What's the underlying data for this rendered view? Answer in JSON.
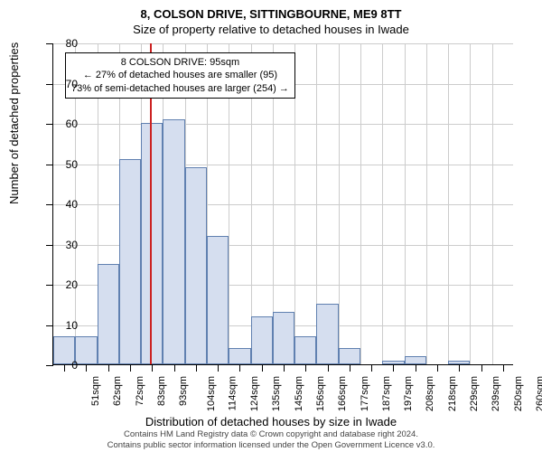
{
  "chart": {
    "type": "histogram",
    "title": "8, COLSON DRIVE, SITTINGBOURNE, ME9 8TT",
    "subtitle": "Size of property relative to detached houses in Iwade",
    "y_axis_title": "Number of detached properties",
    "x_axis_title": "Distribution of detached houses by size in Iwade",
    "ylim": [
      0,
      80
    ],
    "ytick_step": 10,
    "background_color": "#ffffff",
    "grid_color": "#cccccc",
    "bar_fill": "#d5deef",
    "bar_border": "#6080b0",
    "marker_color": "#cc2222",
    "marker_value": 95,
    "x_labels": [
      "51sqm",
      "62sqm",
      "72sqm",
      "83sqm",
      "93sqm",
      "104sqm",
      "114sqm",
      "124sqm",
      "135sqm",
      "145sqm",
      "156sqm",
      "166sqm",
      "177sqm",
      "187sqm",
      "197sqm",
      "208sqm",
      "218sqm",
      "229sqm",
      "239sqm",
      "250sqm",
      "260sqm"
    ],
    "values": [
      7,
      7,
      25,
      51,
      60,
      61,
      49,
      32,
      4,
      12,
      13,
      7,
      15,
      4,
      0,
      1,
      2,
      0,
      1,
      0,
      0
    ],
    "annotation": {
      "line1": "8 COLSON DRIVE: 95sqm",
      "line2": "← 27% of detached houses are smaller (95)",
      "line3": "73% of semi-detached houses are larger (254) →"
    },
    "footer": {
      "line1": "Contains HM Land Registry data © Crown copyright and database right 2024.",
      "line2": "Contains public sector information licensed under the Open Government Licence v3.0."
    }
  }
}
